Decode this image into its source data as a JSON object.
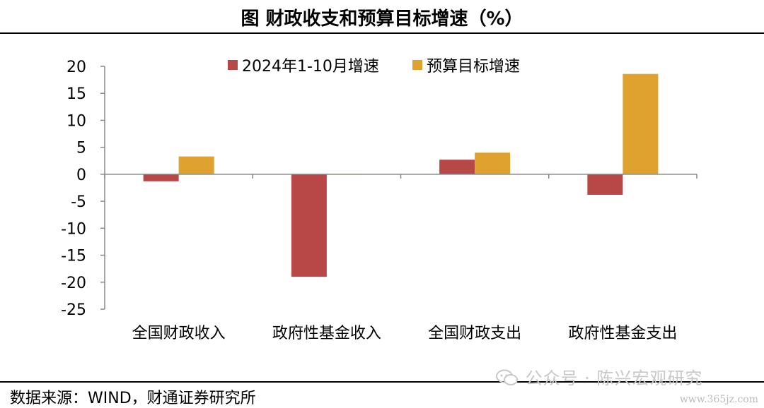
{
  "title": "图  财政收支和预算目标增速（%）",
  "source": "数据来源：WIND，财通证券研究所",
  "watermark": "公众号 · 陈兴宏观研究",
  "watermark_icon": "wechat-icon",
  "site": "www.365jz.com",
  "colors": {
    "series1": "#B84848",
    "series2": "#DFA22E",
    "axis": "#888888"
  },
  "chart_data": {
    "type": "bar",
    "categories": [
      "全国财政收入",
      "政府性基金收入",
      "全国财政支出",
      "政府性基金支出"
    ],
    "series": [
      {
        "name": "2024年1-10月增速",
        "values": [
          -1.3,
          -19.0,
          2.7,
          -3.8
        ]
      },
      {
        "name": "预算目标增速",
        "values": [
          3.3,
          0.1,
          4.0,
          18.6
        ]
      }
    ],
    "ylim": [
      -25,
      20
    ],
    "yticks": [
      20,
      15,
      10,
      5,
      0,
      -5,
      -10,
      -15,
      -20,
      -25
    ],
    "legend_position": "top",
    "grid": false
  }
}
